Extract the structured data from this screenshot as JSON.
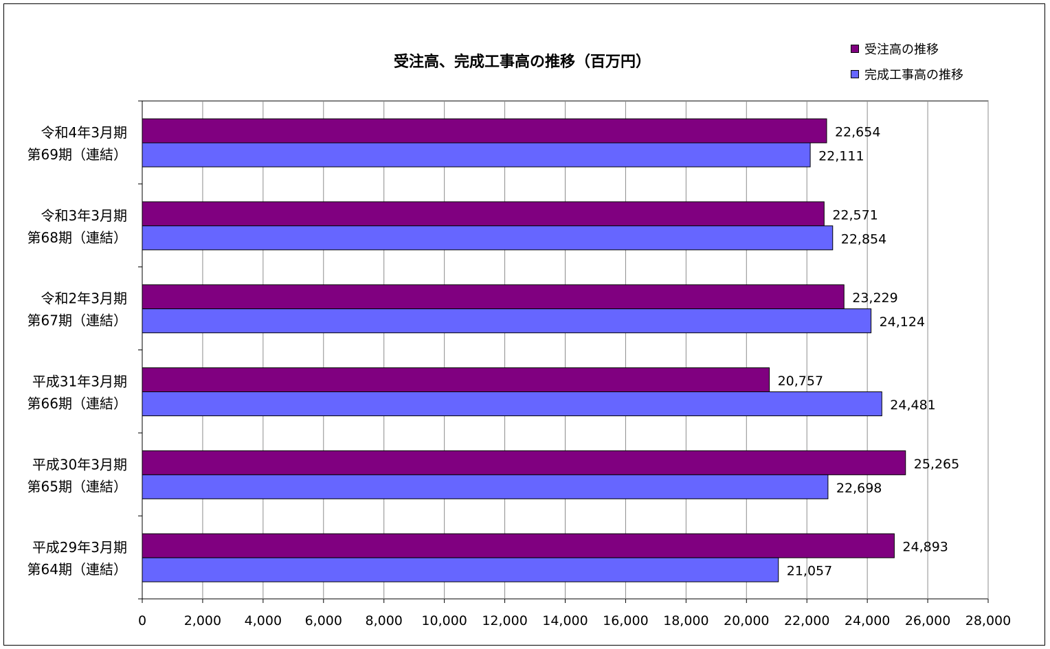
{
  "chart_data": {
    "type": "bar",
    "orientation": "horizontal",
    "title": "受注高、完成工事高の推移（百万円）",
    "categories": [
      [
        "令和4年3月期",
        "第69期（連結）"
      ],
      [
        "令和3年3月期",
        "第68期（連結）"
      ],
      [
        "令和2年3月期",
        "第67期（連結）"
      ],
      [
        "平成31年3月期",
        "第66期（連結）"
      ],
      [
        "平成30年3月期",
        "第65期（連結）"
      ],
      [
        "平成29年3月期",
        "第64期（連結）"
      ]
    ],
    "series": [
      {
        "name": "受注高の推移",
        "color": "#800080",
        "values": [
          22654,
          22571,
          23229,
          20757,
          25265,
          24893
        ],
        "labels": [
          "22,654",
          "22,571",
          "23,229",
          "20,757",
          "25,265",
          "24,893"
        ]
      },
      {
        "name": "完成工事高の推移",
        "color": "#6666ff",
        "values": [
          22111,
          22854,
          24124,
          24481,
          22698,
          21057
        ],
        "labels": [
          "22,111",
          "22,854",
          "24,124",
          "24,481",
          "22,698",
          "21,057"
        ]
      }
    ],
    "xlim": [
      0,
      28000
    ],
    "xticks": [
      0,
      2000,
      4000,
      6000,
      8000,
      10000,
      12000,
      14000,
      16000,
      18000,
      20000,
      22000,
      24000,
      26000,
      28000
    ],
    "xtick_labels": [
      "0",
      "2,000",
      "4,000",
      "6,000",
      "8,000",
      "10,000",
      "12,000",
      "14,000",
      "16,000",
      "18,000",
      "20,000",
      "22,000",
      "24,000",
      "26,000",
      "28,000"
    ],
    "grid": true,
    "legend_position": "top-right"
  }
}
